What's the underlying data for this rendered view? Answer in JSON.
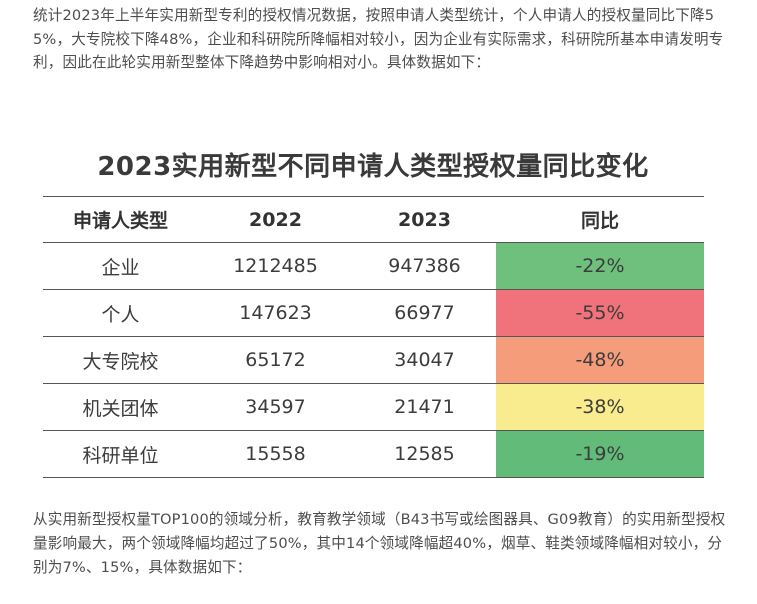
{
  "intro": "统计2023年上半年实用新型专利的授权情况数据，按照申请人类型统计，个人申请人的授权量同比下降55%，大专院校下降48%，企业和科研院所降幅相对较小，因为企业有实际需求，科研院所基本申请发明专利，因此在此轮实用新型整体下降趋势中影响相对小。具体数据如下：",
  "table": {
    "title": "2023实用新型不同申请人类型授权量同比变化",
    "headers": [
      "申请人类型",
      "2022",
      "2023",
      "同比"
    ],
    "rows": [
      {
        "type": "企业",
        "y2022": "1212485",
        "y2023": "947386",
        "change": "-22%",
        "color": "#6ec07c"
      },
      {
        "type": "个人",
        "y2022": "147623",
        "y2023": "66977",
        "change": "-55%",
        "color": "#f0727a"
      },
      {
        "type": "大专院校",
        "y2022": "65172",
        "y2023": "34047",
        "change": "-48%",
        "color": "#f59c7a"
      },
      {
        "type": "机关团体",
        "y2022": "34597",
        "y2023": "21471",
        "change": "-38%",
        "color": "#f8ec8e"
      },
      {
        "type": "科研单位",
        "y2022": "15558",
        "y2023": "12585",
        "change": "-19%",
        "color": "#62bb78"
      }
    ]
  },
  "outro": "从实用新型授权量TOP100的领域分析，教育教学领域（B43书写或绘图器具、G09教育）的实用新型授权量影响最大，两个领域降幅均超过了50%，其中14个领域降幅超40%，烟草、鞋类领域降幅相对较小，分别为7%、15%，具体数据如下："
}
